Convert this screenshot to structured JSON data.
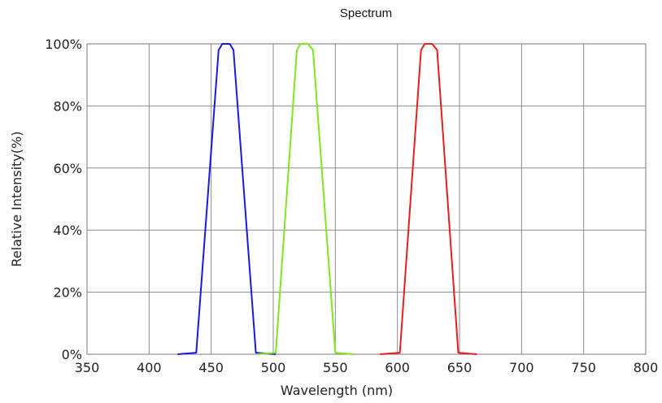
{
  "chart_data": {
    "type": "line",
    "title": "Spectrum",
    "xlabel": "Wavelength (nm)",
    "ylabel": "Relative Intensity(%)",
    "xlim": [
      350,
      800
    ],
    "ylim": [
      0,
      100
    ],
    "x_ticks": [
      "350",
      "400",
      "450",
      "500",
      "550",
      "600",
      "650",
      "700",
      "750",
      "800"
    ],
    "y_ticks": [
      "0%",
      "20%",
      "40%",
      "60%",
      "80%",
      "100%"
    ],
    "grid": true,
    "legend": "none",
    "series": [
      {
        "color": "#1a1adc",
        "x": [
          423,
          438,
          456,
          459,
          462,
          465,
          468,
          486,
          502
        ],
        "y": [
          0,
          0.5,
          98,
          100,
          100,
          100,
          98,
          0.5,
          0
        ]
      },
      {
        "color": "#80e61e",
        "x": [
          487,
          502,
          519,
          522,
          525,
          528,
          532,
          550,
          565
        ],
        "y": [
          0,
          0.5,
          98,
          100,
          100,
          100,
          98,
          0.5,
          0
        ]
      },
      {
        "color": "#e61e1e",
        "x": [
          586,
          602,
          619,
          622,
          625,
          628,
          632,
          649,
          664
        ],
        "y": [
          0,
          0.5,
          98,
          100,
          100,
          100,
          98,
          0.5,
          0
        ]
      }
    ]
  }
}
